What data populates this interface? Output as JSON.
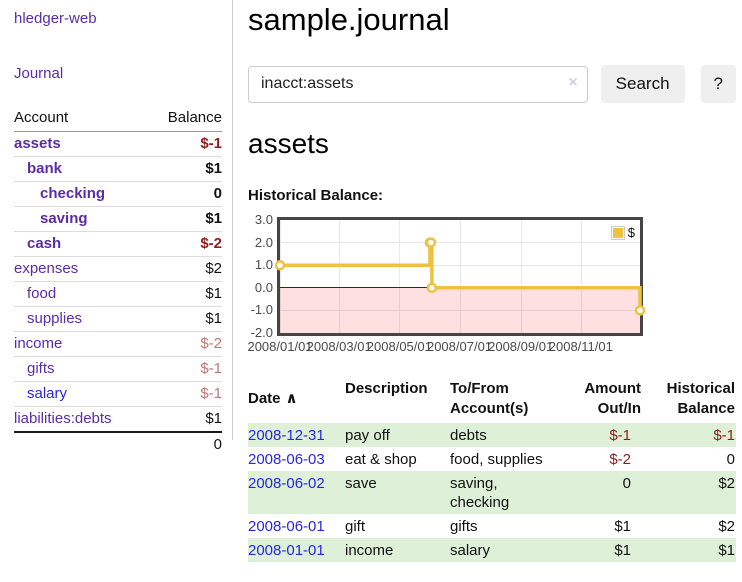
{
  "sidebar": {
    "brand": "hledger-web",
    "nav": {
      "journal": "Journal"
    },
    "accounts_table": {
      "headers": {
        "account": "Account",
        "balance": "Balance"
      },
      "rows": [
        {
          "name": "assets",
          "indent": 1,
          "bold": true,
          "color": "purple",
          "balance": "$-1",
          "balance_style": "neg-dark",
          "balance_bold": true
        },
        {
          "name": "bank",
          "indent": 2,
          "bold": true,
          "color": "purple",
          "balance": "$1",
          "balance_style": "plain",
          "balance_bold": true
        },
        {
          "name": "checking",
          "indent": 3,
          "bold": true,
          "color": "purple",
          "balance": "0",
          "balance_style": "plain",
          "balance_bold": true
        },
        {
          "name": "saving",
          "indent": 3,
          "bold": true,
          "color": "purple",
          "balance": "$1",
          "balance_style": "plain",
          "balance_bold": true
        },
        {
          "name": "cash",
          "indent": 2,
          "bold": true,
          "color": "purple",
          "balance": "$-2",
          "balance_style": "neg-dark",
          "balance_bold": true
        },
        {
          "name": "expenses",
          "indent": 1,
          "bold": false,
          "color": "purple",
          "balance": "$2",
          "balance_style": "plain",
          "balance_bold": false
        },
        {
          "name": "food",
          "indent": 2,
          "bold": false,
          "color": "purple",
          "balance": "$1",
          "balance_style": "plain",
          "balance_bold": false
        },
        {
          "name": "supplies",
          "indent": 2,
          "bold": false,
          "color": "purple",
          "balance": "$1",
          "balance_style": "plain",
          "balance_bold": false
        },
        {
          "name": "income",
          "indent": 1,
          "bold": false,
          "color": "purple",
          "balance": "$-2",
          "balance_style": "neg-light",
          "balance_bold": false
        },
        {
          "name": "gifts",
          "indent": 2,
          "bold": false,
          "color": "purple",
          "balance": "$-1",
          "balance_style": "neg-light",
          "balance_bold": false
        },
        {
          "name": "salary",
          "indent": 2,
          "bold": false,
          "color": "blue",
          "balance": "$-1",
          "balance_style": "neg-light",
          "balance_bold": false
        },
        {
          "name": "liabilities:debts",
          "indent": 1,
          "bold": false,
          "color": "purple",
          "balance": "$1",
          "balance_style": "plain",
          "balance_bold": false
        }
      ],
      "total": "0"
    }
  },
  "header": {
    "title": "sample.journal"
  },
  "search": {
    "value": "inacct:assets",
    "clear_icon": "×",
    "button_label": "Search",
    "help_label": "?"
  },
  "account_page": {
    "heading": "assets",
    "chart_label": "Historical Balance:"
  },
  "chart_data": {
    "type": "line",
    "title": "Historical Balance:",
    "step": true,
    "xlim": [
      "2008-01-01",
      "2008-12-31"
    ],
    "ylim": [
      -2,
      3
    ],
    "grid": true,
    "legend_position": "top-right",
    "series": [
      {
        "name": "$",
        "color": "#edc240",
        "points": [
          [
            "2008-01-01",
            1
          ],
          [
            "2008-06-01",
            2
          ],
          [
            "2008-06-02",
            2
          ],
          [
            "2008-06-03",
            0
          ],
          [
            "2008-12-31",
            -1
          ]
        ]
      }
    ],
    "x_ticks": [
      {
        "date": "2008-01-01",
        "label": "2008/01/01"
      },
      {
        "date": "2008-03-01",
        "label": "2008/03/01"
      },
      {
        "date": "2008-05-01",
        "label": "2008/05/01"
      },
      {
        "date": "2008-07-01",
        "label": "2008/07/01"
      },
      {
        "date": "2008-09-01",
        "label": "2008/09/01"
      },
      {
        "date": "2008-11-01",
        "label": "2008/11/01"
      }
    ],
    "y_ticks": [
      {
        "value": 3,
        "label": "3.0"
      },
      {
        "value": 2,
        "label": "2.0"
      },
      {
        "value": 1,
        "label": "1.0"
      },
      {
        "value": 0,
        "label": "0.0"
      },
      {
        "value": -1,
        "label": "-1.0"
      },
      {
        "value": -2,
        "label": "-2.0"
      }
    ],
    "zero_line_color": "#8b0000",
    "negative_region": true
  },
  "register_table": {
    "headers": {
      "date": "Date",
      "sort_icon": "∧",
      "description": "Description",
      "account": "To/From\nAccount(s)",
      "amount": "Amount\nOut/In",
      "balance": "Historical\nBalance"
    },
    "rows": [
      {
        "date": "2008-12-31",
        "description": "pay off",
        "accounts": "debts",
        "amount": "$-1",
        "balance": "$-1"
      },
      {
        "date": "2008-06-03",
        "description": "eat & shop",
        "accounts": "food, supplies",
        "amount": "$-2",
        "balance": "0"
      },
      {
        "date": "2008-06-02",
        "description": "save",
        "accounts": "saving, checking",
        "amount": "0",
        "balance": "$2"
      },
      {
        "date": "2008-06-01",
        "description": "gift",
        "accounts": "gifts",
        "amount": "$1",
        "balance": "$2"
      },
      {
        "date": "2008-01-01",
        "description": "income",
        "accounts": "salary",
        "amount": "$1",
        "balance": "$1"
      }
    ]
  }
}
